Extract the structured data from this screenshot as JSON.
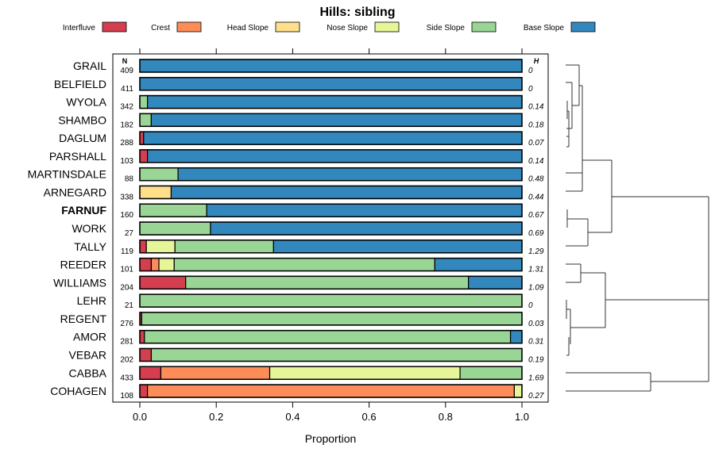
{
  "chart_data": {
    "type": "bar",
    "orientation": "horizontal-stacked",
    "title": "Hills: sibling",
    "xlabel": "Proportion",
    "xlim": [
      0,
      1
    ],
    "xticks": [
      "0.0",
      "0.2",
      "0.4",
      "0.6",
      "0.8",
      "1.0"
    ],
    "xtick_values": [
      0,
      0.2,
      0.4,
      0.6,
      0.8,
      1.0
    ],
    "n_header": "N",
    "h_header": "H",
    "legend_placement": "top",
    "legend": [
      {
        "name": "Interfluve",
        "color": "#D53E4F"
      },
      {
        "name": "Crest",
        "color": "#FC8D59"
      },
      {
        "name": "Head Slope",
        "color": "#FEE08B"
      },
      {
        "name": "Nose Slope",
        "color": "#E6F598"
      },
      {
        "name": "Side Slope",
        "color": "#99D594"
      },
      {
        "name": "Base Slope",
        "color": "#3288BD"
      }
    ],
    "categories": [
      "GRAIL",
      "BELFIELD",
      "WYOLA",
      "SHAMBO",
      "DAGLUM",
      "PARSHALL",
      "MARTINSDALE",
      "ARNEGARD",
      "FARNUF",
      "WORK",
      "TALLY",
      "REEDER",
      "WILLIAMS",
      "LEHR",
      "REGENT",
      "AMOR",
      "VEBAR",
      "CABBA",
      "COHAGEN"
    ],
    "highlight": "FARNUF",
    "N": [
      "409",
      "411",
      "342",
      "182",
      "288",
      "103",
      "88",
      "338",
      "160",
      "27",
      "119",
      "101",
      "204",
      "21",
      "276",
      "281",
      "202",
      "433",
      "108"
    ],
    "H": [
      "0",
      "0",
      "0.14",
      "0.18",
      "0.07",
      "0.14",
      "0.48",
      "0.44",
      "0.67",
      "0.69",
      "1.29",
      "1.31",
      "1.09",
      "0",
      "0.03",
      "0.31",
      "0.19",
      "1.69",
      "0.27"
    ],
    "series": [
      {
        "name": "Interfluve",
        "values": [
          0,
          0,
          0,
          0,
          0.01,
          0.02,
          0,
          0,
          0,
          0,
          0.017,
          0.03,
          0.12,
          0,
          0.005,
          0.012,
          0.03,
          0.055,
          0.02
        ]
      },
      {
        "name": "Crest",
        "values": [
          0,
          0,
          0,
          0,
          0,
          0,
          0,
          0,
          0,
          0,
          0,
          0.02,
          0,
          0,
          0,
          0,
          0,
          0.285,
          0.96
        ]
      },
      {
        "name": "Head Slope",
        "values": [
          0,
          0,
          0,
          0,
          0,
          0,
          0,
          0.082,
          0,
          0,
          0,
          0,
          0,
          0,
          0,
          0,
          0,
          0,
          0
        ]
      },
      {
        "name": "Nose Slope",
        "values": [
          0,
          0,
          0,
          0,
          0,
          0,
          0,
          0,
          0,
          0,
          0.075,
          0.04,
          0,
          0,
          0,
          0,
          0,
          0.498,
          0.02
        ]
      },
      {
        "name": "Side Slope",
        "values": [
          0,
          0,
          0.02,
          0.03,
          0,
          0,
          0.1,
          0,
          0.175,
          0.185,
          0.258,
          0.682,
          0.74,
          1,
          0.995,
          0.958,
          0.97,
          0.162,
          0
        ]
      },
      {
        "name": "Base Slope",
        "values": [
          1,
          1,
          0.98,
          0.97,
          0.99,
          0.98,
          0.9,
          0.918,
          0.825,
          0.815,
          0.65,
          0.228,
          0.14,
          0,
          0,
          0.03,
          0,
          0,
          0
        ]
      }
    ]
  }
}
